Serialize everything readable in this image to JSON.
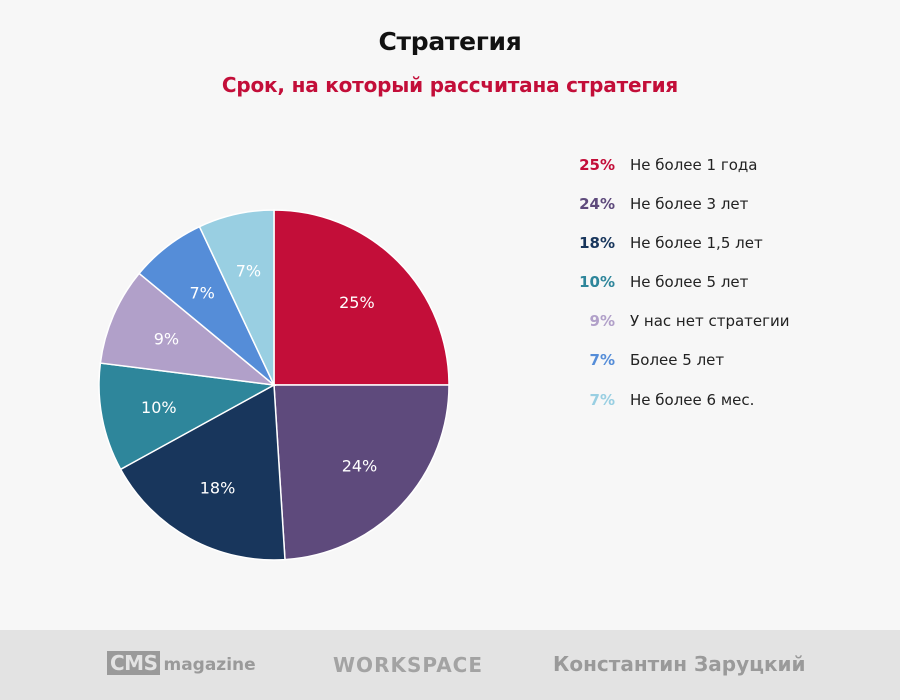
{
  "chart_data": {
    "type": "pie",
    "title": "Стратегия",
    "subtitle": "Срок, на который рассчитана стратегия",
    "slices": [
      {
        "label": "Не более 1 года",
        "value": 25,
        "display": "25%",
        "color": "#c30e39"
      },
      {
        "label": "Не более 3 лет",
        "value": 24,
        "display": "24%",
        "color": "#5e4a7c"
      },
      {
        "label": "Не более 1,5 лет",
        "value": 18,
        "display": "18%",
        "color": "#18365c"
      },
      {
        "label": "Не более 5 лет",
        "value": 10,
        "display": "10%",
        "color": "#2e869b"
      },
      {
        "label": "У нас нет стратегии",
        "value": 9,
        "display": "9%",
        "color": "#b1a0c9"
      },
      {
        "label": "Более 5 лет",
        "value": 7,
        "display": "7%",
        "color": "#558dd8"
      },
      {
        "label": "Не более 6 мес.",
        "value": 7,
        "display": "7%",
        "color": "#99cfe2"
      }
    ],
    "legend_position": "right"
  },
  "footer": {
    "cms_box": "CMS",
    "cms_suffix": "magazine",
    "workspace": "WORKSPACE",
    "author": "Константин Заруцкий"
  }
}
